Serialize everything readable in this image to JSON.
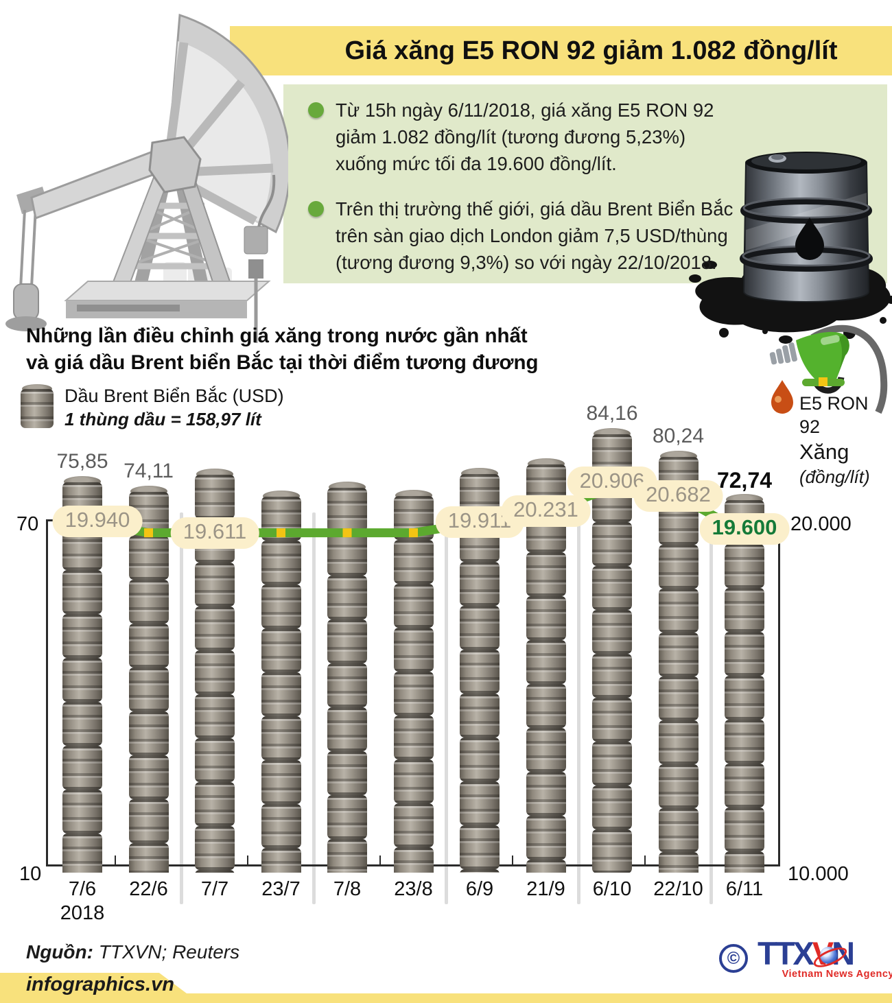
{
  "title": {
    "text": "Giá xăng E5 RON 92 giảm 1.082 đồng/lít"
  },
  "info_box": {
    "bullets": [
      {
        "lines": [
          "Từ 15h ngày 6/11/2018, giá xăng E5 RON 92",
          "giảm 1.082 đồng/lít (tương đương 5,23%)",
          "xuống mức tối đa  19.600 đồng/lít."
        ]
      },
      {
        "lines": [
          "Trên thị trường thế giới, giá dầu Brent Biển Bắc",
          "trên sàn giao dịch London giảm 7,5 USD/thùng",
          "(tương đương 9,3%) so với ngày 22/10/2018."
        ]
      }
    ]
  },
  "section_heading": {
    "line1": "Những lần điều chỉnh giá xăng trong nước gần nhất",
    "line2": "và giá dầu Brent biển Bắc tại thời điểm tương đương"
  },
  "legend": {
    "brent_label": "Dầu Brent Biển Bắc (USD)",
    "brent_note": "1 thùng dầu = 158,97 lít",
    "gas_name": "E5 RON 92",
    "gas_word": "Xăng",
    "gas_unit": "(đồng/lít)"
  },
  "chart_data": {
    "type": "bar+line",
    "categories": [
      "7/6",
      "22/6",
      "7/7",
      "23/7",
      "7/8",
      "23/8",
      "6/9",
      "21/9",
      "6/10",
      "22/10",
      "6/11"
    ],
    "year_label": "2018",
    "series": [
      {
        "name": "Dầu Brent Biển Bắc",
        "unit": "USD/thùng",
        "type": "bar",
        "values": [
          75.85,
          74.11,
          77.1,
          73.3,
          74.9,
          73.5,
          77.2,
          78.9,
          84.16,
          80.24,
          72.74
        ],
        "point_labels": [
          "75,85",
          "74,11",
          "",
          "",
          "",
          "",
          "",
          "",
          "84,16",
          "80,24",
          "72,74"
        ]
      },
      {
        "name": "Xăng E5 RON 92",
        "unit": "đồng/lít",
        "type": "line",
        "values": [
          19940,
          19611,
          19611,
          19611,
          19611,
          19611,
          19911,
          20231,
          20906,
          20682,
          19600
        ],
        "point_labels": [
          "19.940",
          "",
          "19.611",
          "",
          "",
          "",
          "19.911",
          "20.231",
          "20.906",
          "20.682",
          "19.600"
        ],
        "marker_indices": [
          1,
          3,
          4,
          5
        ]
      }
    ],
    "left_axis": {
      "min": 10,
      "max": 70,
      "tick_labels": [
        "70",
        "10"
      ]
    },
    "right_axis": {
      "min": 10000,
      "max": 20000,
      "tick_labels": [
        "20.000",
        "10.000"
      ]
    },
    "grid": "column-separators",
    "legend_position": "above-chart"
  },
  "footer": {
    "source_label": "Nguồn:",
    "source_value": " TTXVN; Reuters",
    "brand": "infographics.vn",
    "logo": {
      "copyright": "©",
      "ttx": "TTX",
      "v": "V",
      "n": "N",
      "tagline": "Vietnam News Agency"
    }
  },
  "colors": {
    "banner_yellow": "#F8E17C",
    "box_green": "#E0E9CA",
    "bullet_green": "#68A93C",
    "line_green": "#5CA92F",
    "marker_yellow": "#F3C414",
    "pill_cream": "#FBEFCB",
    "teal_bar": "#D9E9E2",
    "gas_final_green": "#157A38",
    "logo_blue": "#2B3F94",
    "logo_red": "#E02A26"
  }
}
